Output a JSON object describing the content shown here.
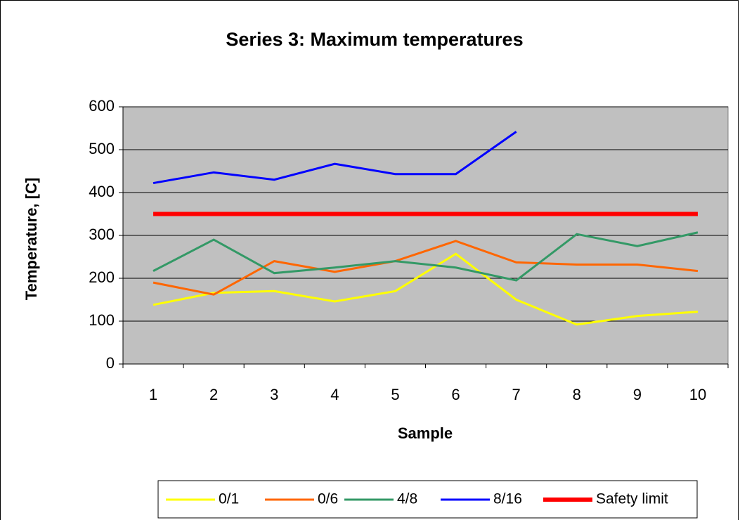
{
  "chart_data": {
    "type": "line",
    "title": "Series 3: Maximum temperatures",
    "x_label": "Sample",
    "y_label": "Temperature, [C]",
    "categories": [
      "1",
      "2",
      "3",
      "4",
      "5",
      "6",
      "7",
      "8",
      "9",
      "10"
    ],
    "series": [
      {
        "name": "0/1",
        "color": "#ffff00",
        "values": [
          138,
          166,
          170,
          146,
          170,
          257,
          150,
          92,
          112,
          122
        ]
      },
      {
        "name": "0/6",
        "color": "#ff6600",
        "values": [
          190,
          162,
          240,
          215,
          240,
          287,
          237,
          232,
          232,
          217
        ]
      },
      {
        "name": "4/8",
        "color": "#339966",
        "values": [
          217,
          290,
          212,
          225,
          240,
          225,
          195,
          303,
          275,
          307
        ]
      },
      {
        "name": "8/16",
        "color": "#0000ff",
        "values": [
          422,
          447,
          430,
          467,
          443,
          443,
          542,
          null,
          null,
          null
        ]
      },
      {
        "name": "Safety limit",
        "color": "#ff0000",
        "values": [
          350,
          350,
          350,
          350,
          350,
          350,
          350,
          350,
          350,
          350
        ]
      }
    ],
    "ylim": [
      0,
      600
    ],
    "yticks": [
      0,
      100,
      200,
      300,
      400,
      500,
      600
    ],
    "grid": true,
    "legend": "bottom",
    "plot_background": "#c0c0c0"
  }
}
